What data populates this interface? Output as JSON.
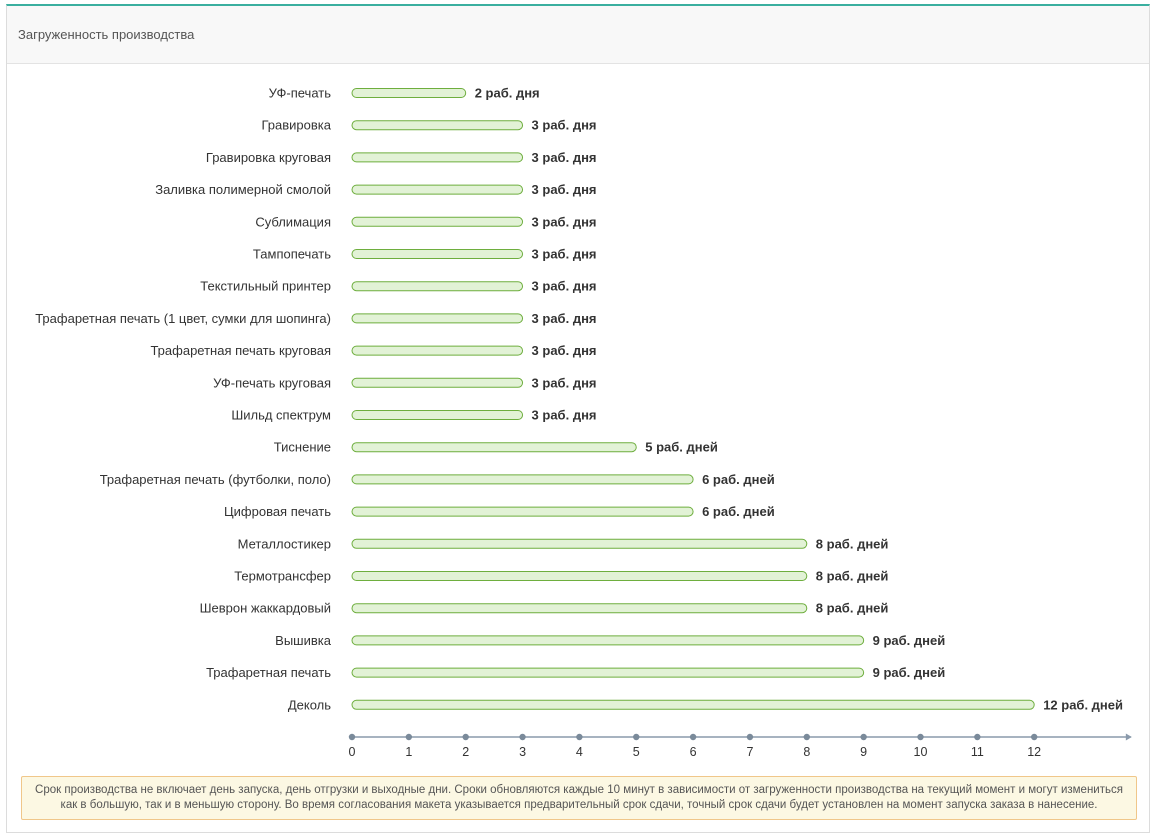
{
  "panel": {
    "title": "Загруженность производства"
  },
  "chart_data": {
    "type": "bar",
    "orientation": "horizontal",
    "categories": [
      "УФ-печать",
      "Гравировка",
      "Гравировка круговая",
      "Заливка полимерной смолой",
      "Сублимация",
      "Тампопечать",
      "Текстильный принтер",
      "Трафаретная печать (1 цвет, сумки для шопинга)",
      "Трафаретная печать круговая",
      "УФ-печать круговая",
      "Шильд спектрум",
      "Тиснение",
      "Трафаретная печать (футболки, поло)",
      "Цифровая печать",
      "Металлостикер",
      "Термотрансфер",
      "Шеврон жаккардовый",
      "Вышивка",
      "Трафаретная печать",
      "Деколь"
    ],
    "values": [
      2,
      3,
      3,
      3,
      3,
      3,
      3,
      3,
      3,
      3,
      3,
      5,
      6,
      6,
      8,
      8,
      8,
      9,
      9,
      12
    ],
    "data_labels": [
      "2 раб. дня",
      "3 раб. дня",
      "3 раб. дня",
      "3 раб. дня",
      "3 раб. дня",
      "3 раб. дня",
      "3 раб. дня",
      "3 раб. дня",
      "3 раб. дня",
      "3 раб. дня",
      "3 раб. дня",
      "5 раб. дней",
      "6 раб. дней",
      "6 раб. дней",
      "8 раб. дней",
      "8 раб. дней",
      "8 раб. дней",
      "9 раб. дней",
      "9 раб. дней",
      "12 раб. дней"
    ],
    "x_ticks": [
      0,
      1,
      2,
      3,
      4,
      5,
      6,
      7,
      8,
      9,
      10,
      11,
      12
    ],
    "xlim": [
      0,
      13.7
    ],
    "colors": {
      "bar_fill": "#e2f2d6",
      "bar_stroke": "#6eae3e",
      "axis": "#8a9aab"
    }
  },
  "note": {
    "line1": "Срок производства не включает день запуска, день отгрузки и выходные дни. Сроки обновляются каждые 10 минут в зависимости от загруженности производства на текущий момент и могут измениться",
    "line2": "как в большую, так и в меньшую сторону. Во время согласования макета указывается предварительный срок сдачи, точный срок сдачи будет установлен на момент запуска заказа в нанесение."
  }
}
